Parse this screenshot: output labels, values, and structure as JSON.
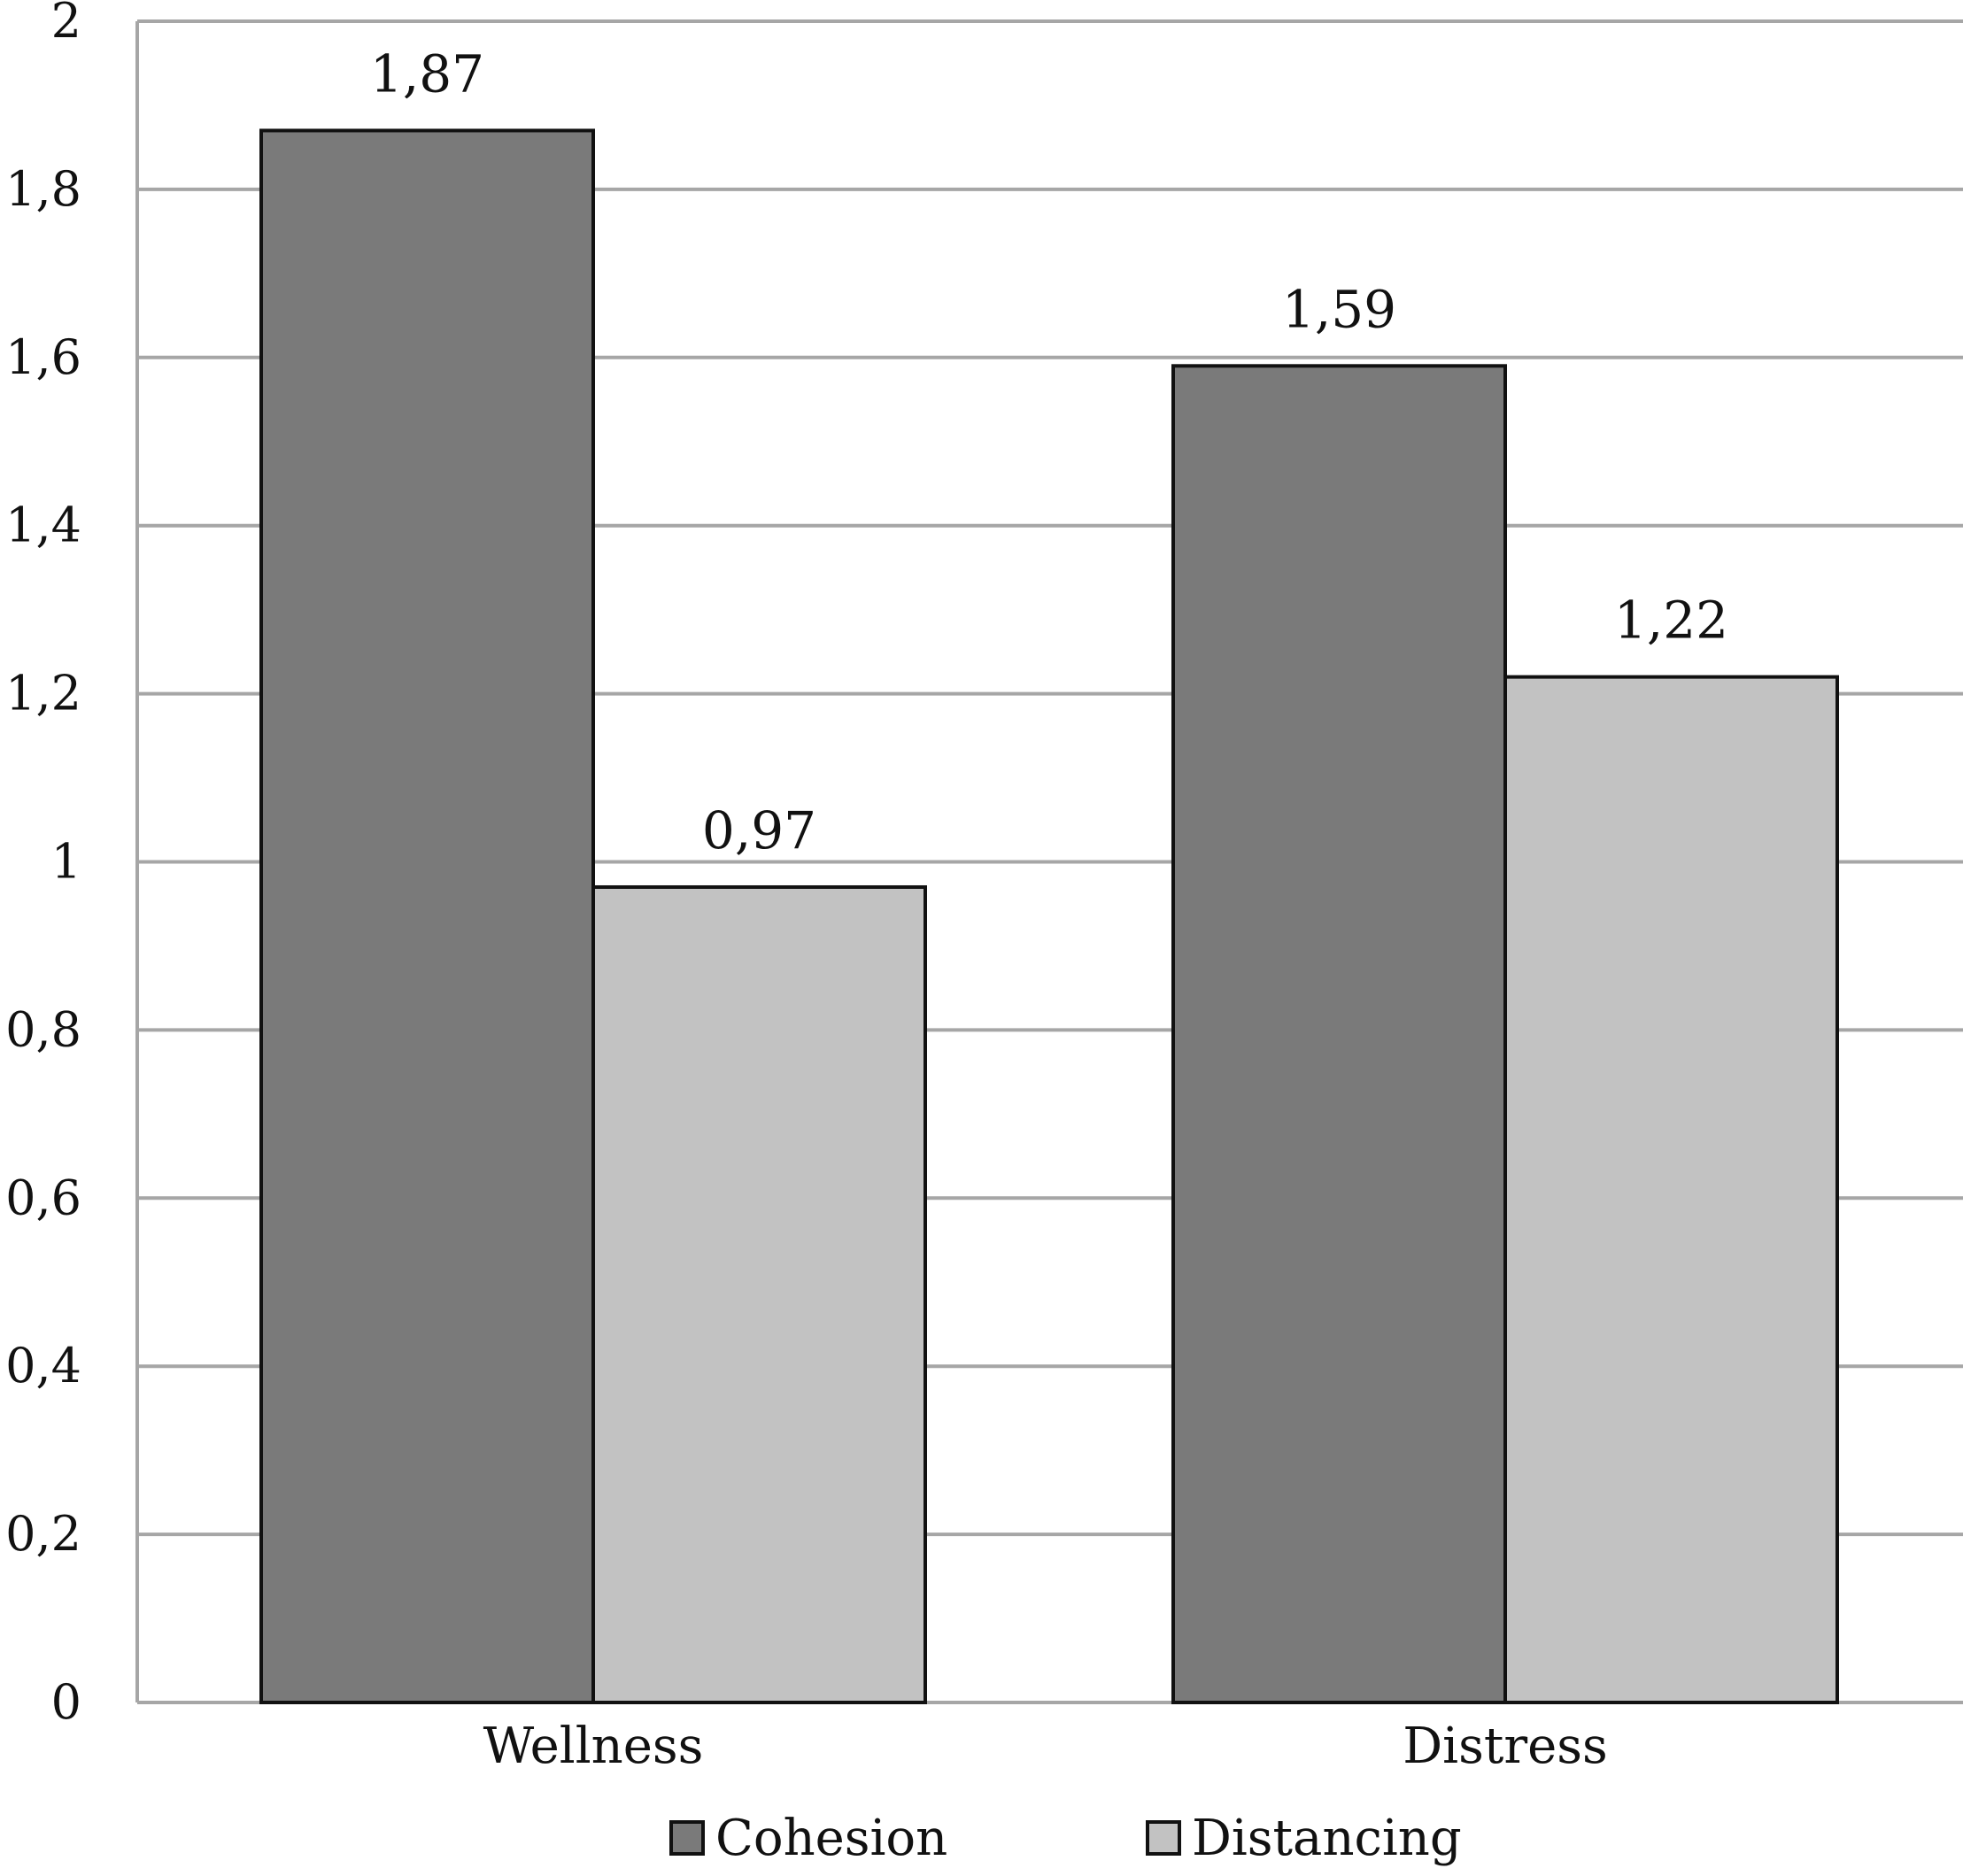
{
  "chart_data": {
    "type": "bar",
    "categories": [
      "Wellness",
      "Distress"
    ],
    "series": [
      {
        "name": "Cohesion",
        "values": [
          1.87,
          1.59
        ],
        "labels": [
          "1,87",
          "1,59"
        ],
        "color": "#7a7a7a"
      },
      {
        "name": "Distancing",
        "values": [
          0.97,
          1.22
        ],
        "labels": [
          "0,97",
          "1,22"
        ],
        "color": "#c2c2c2"
      }
    ],
    "ylim": [
      0,
      2
    ],
    "yticks": [
      {
        "value": 0,
        "label": "0"
      },
      {
        "value": 0.2,
        "label": "0,2"
      },
      {
        "value": 0.4,
        "label": "0,4"
      },
      {
        "value": 0.6,
        "label": "0,6"
      },
      {
        "value": 0.8,
        "label": "0,8"
      },
      {
        "value": 1,
        "label": "1"
      },
      {
        "value": 1.2,
        "label": "1,2"
      },
      {
        "value": 1.4,
        "label": "1,4"
      },
      {
        "value": 1.6,
        "label": "1,6"
      },
      {
        "value": 1.8,
        "label": "1,8"
      },
      {
        "value": 2,
        "label": "2"
      }
    ],
    "grid": true,
    "legend_position": "bottom",
    "title": "",
    "xlabel": "",
    "ylabel": "",
    "gridline_color": "#a6a6a6",
    "bar_outline_color": "#111111"
  }
}
